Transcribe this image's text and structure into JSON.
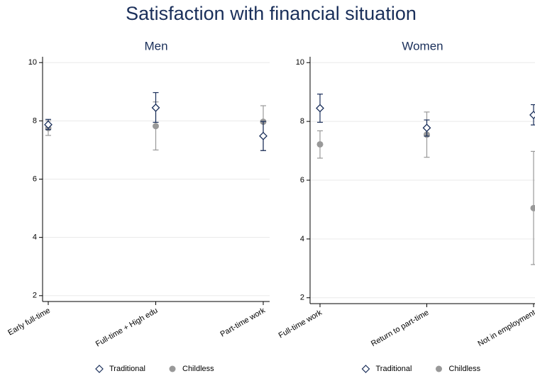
{
  "title": "Satisfaction with financial situation",
  "chart_data": [
    {
      "type": "errorbar",
      "title": "Men",
      "categories": [
        "Early full-time",
        "Full-time + High edu",
        "Part-time work"
      ],
      "ylim": [
        1.8,
        10.2
      ],
      "yticks": [
        2,
        4,
        6,
        8,
        10
      ],
      "grid": true,
      "series": [
        {
          "name": "Traditional",
          "color": "#1a2f5a",
          "marker": "diamond",
          "values": [
            7.87,
            8.45,
            7.48
          ],
          "lower": [
            7.7,
            7.95,
            6.98
          ],
          "upper": [
            8.05,
            8.97,
            7.98
          ]
        },
        {
          "name": "Childless",
          "color": "#999999",
          "marker": "circle",
          "values": [
            7.75,
            7.82,
            7.97
          ],
          "lower": [
            7.5,
            7.0,
            6.98
          ],
          "upper": [
            8.0,
            8.65,
            8.52
          ]
        }
      ]
    },
    {
      "type": "errorbar",
      "title": "Women",
      "categories": [
        "Full-time work",
        "Return to part-time",
        "Not in employment"
      ],
      "ylim": [
        1.8,
        10.2
      ],
      "yticks": [
        2,
        4,
        6,
        8,
        10
      ],
      "grid": true,
      "series": [
        {
          "name": "Traditional",
          "color": "#1a2f5a",
          "marker": "diamond",
          "values": [
            8.45,
            7.78,
            8.22
          ],
          "lower": [
            7.97,
            7.5,
            7.88
          ],
          "upper": [
            8.93,
            8.05,
            8.57
          ]
        },
        {
          "name": "Childless",
          "color": "#999999",
          "marker": "circle",
          "values": [
            7.22,
            7.55,
            5.05
          ],
          "lower": [
            6.75,
            6.78,
            3.13
          ],
          "upper": [
            7.68,
            8.32,
            6.98
          ]
        }
      ]
    }
  ]
}
